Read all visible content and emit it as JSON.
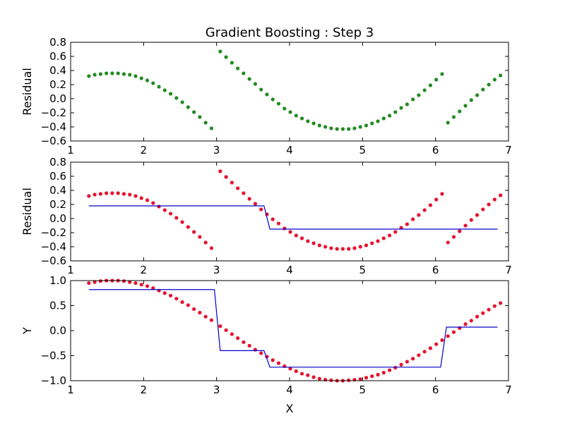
{
  "chart_data": {
    "title": "Gradient Boosting : Step 3",
    "xlabel": "X",
    "panels": [
      {
        "id": "residual-panel-1",
        "type": "scatter",
        "ylabel": "Residual",
        "xlim": [
          1,
          7
        ],
        "ylim": [
          -0.6,
          0.8
        ],
        "xticks": [
          1,
          2,
          3,
          4,
          5,
          6,
          7
        ],
        "yticks": [
          -0.6,
          -0.4,
          -0.2,
          0.0,
          0.2,
          0.4,
          0.6,
          0.8
        ],
        "scatter_color": "#228B22",
        "scatter_key": "residual"
      },
      {
        "id": "residual-panel-2",
        "type": "scatter+step",
        "ylabel": "Residual",
        "xlim": [
          1,
          7
        ],
        "ylim": [
          -0.6,
          0.8
        ],
        "xticks": [
          1,
          2,
          3,
          4,
          5,
          6,
          7
        ],
        "yticks": [
          -0.6,
          -0.4,
          -0.2,
          0.0,
          0.2,
          0.4,
          0.6,
          0.8
        ],
        "scatter_color": "#e8112d",
        "scatter_key": "residual",
        "line_color": "#0000cc",
        "line": {
          "x": [
            1.25,
            3.65,
            3.73,
            6.85
          ],
          "y": [
            0.18,
            0.18,
            -0.15,
            -0.15
          ]
        }
      },
      {
        "id": "prediction-panel",
        "type": "scatter+step",
        "ylabel": "Y",
        "xlim": [
          1,
          7
        ],
        "ylim": [
          -1.0,
          1.0
        ],
        "xticks": [
          1,
          2,
          3,
          4,
          5,
          6,
          7
        ],
        "yticks": [
          -1.0,
          -0.5,
          0.0,
          0.5,
          1.0
        ],
        "scatter_color": "#e8112d",
        "scatter_key": "y",
        "line_color": "#0000cc",
        "line": {
          "x": [
            1.25,
            2.97,
            3.05,
            3.65,
            3.73,
            6.07,
            6.15,
            6.85
          ],
          "y": [
            0.82,
            0.82,
            -0.4,
            -0.4,
            -0.73,
            -0.73,
            0.07,
            0.07
          ]
        }
      }
    ],
    "points": {
      "x": [
        1.25,
        1.33,
        1.41,
        1.49,
        1.57,
        1.65,
        1.73,
        1.81,
        1.89,
        1.97,
        2.05,
        2.13,
        2.21,
        2.29,
        2.37,
        2.45,
        2.53,
        2.61,
        2.69,
        2.77,
        2.85,
        2.93,
        3.05,
        3.13,
        3.21,
        3.29,
        3.37,
        3.45,
        3.53,
        3.61,
        3.69,
        3.77,
        3.85,
        3.93,
        4.01,
        4.09,
        4.17,
        4.25,
        4.33,
        4.41,
        4.49,
        4.57,
        4.65,
        4.73,
        4.81,
        4.89,
        4.97,
        5.05,
        5.13,
        5.21,
        5.29,
        5.37,
        5.45,
        5.53,
        5.61,
        5.69,
        5.77,
        5.85,
        5.93,
        6.01,
        6.09,
        6.17,
        6.25,
        6.33,
        6.41,
        6.49,
        6.57,
        6.65,
        6.73,
        6.81,
        6.89
      ],
      "y": [
        0.95,
        0.97,
        0.99,
        1.0,
        1.0,
        1.0,
        0.99,
        0.97,
        0.95,
        0.92,
        0.89,
        0.85,
        0.8,
        0.75,
        0.7,
        0.64,
        0.57,
        0.51,
        0.43,
        0.36,
        0.28,
        0.21,
        0.09,
        0.01,
        -0.07,
        -0.15,
        -0.23,
        -0.3,
        -0.38,
        -0.45,
        -0.52,
        -0.59,
        -0.65,
        -0.71,
        -0.76,
        -0.81,
        -0.86,
        -0.89,
        -0.93,
        -0.96,
        -0.98,
        -0.99,
        -1.0,
        -1.0,
        -0.99,
        -0.98,
        -0.97,
        -0.94,
        -0.91,
        -0.88,
        -0.84,
        -0.79,
        -0.74,
        -0.68,
        -0.62,
        -0.56,
        -0.49,
        -0.42,
        -0.35,
        -0.27,
        -0.19,
        -0.11,
        -0.03,
        0.05,
        0.13,
        0.2,
        0.28,
        0.35,
        0.42,
        0.49,
        0.55
      ],
      "residual": [
        0.32,
        0.34,
        0.35,
        0.36,
        0.36,
        0.36,
        0.35,
        0.34,
        0.32,
        0.29,
        0.26,
        0.22,
        0.17,
        0.12,
        0.07,
        0.01,
        -0.05,
        -0.12,
        -0.19,
        -0.26,
        -0.34,
        -0.42,
        0.67,
        0.59,
        0.51,
        0.43,
        0.36,
        0.28,
        0.21,
        0.13,
        0.06,
        -0.01,
        -0.07,
        -0.14,
        -0.19,
        -0.24,
        -0.28,
        -0.32,
        -0.35,
        -0.38,
        -0.4,
        -0.42,
        -0.43,
        -0.43,
        -0.43,
        -0.42,
        -0.4,
        -0.38,
        -0.35,
        -0.32,
        -0.28,
        -0.24,
        -0.19,
        -0.13,
        -0.08,
        -0.01,
        0.05,
        0.12,
        0.19,
        0.27,
        0.35,
        -0.34,
        -0.26,
        -0.18,
        -0.1,
        -0.02,
        0.05,
        0.13,
        0.2,
        0.27,
        0.33
      ]
    }
  }
}
